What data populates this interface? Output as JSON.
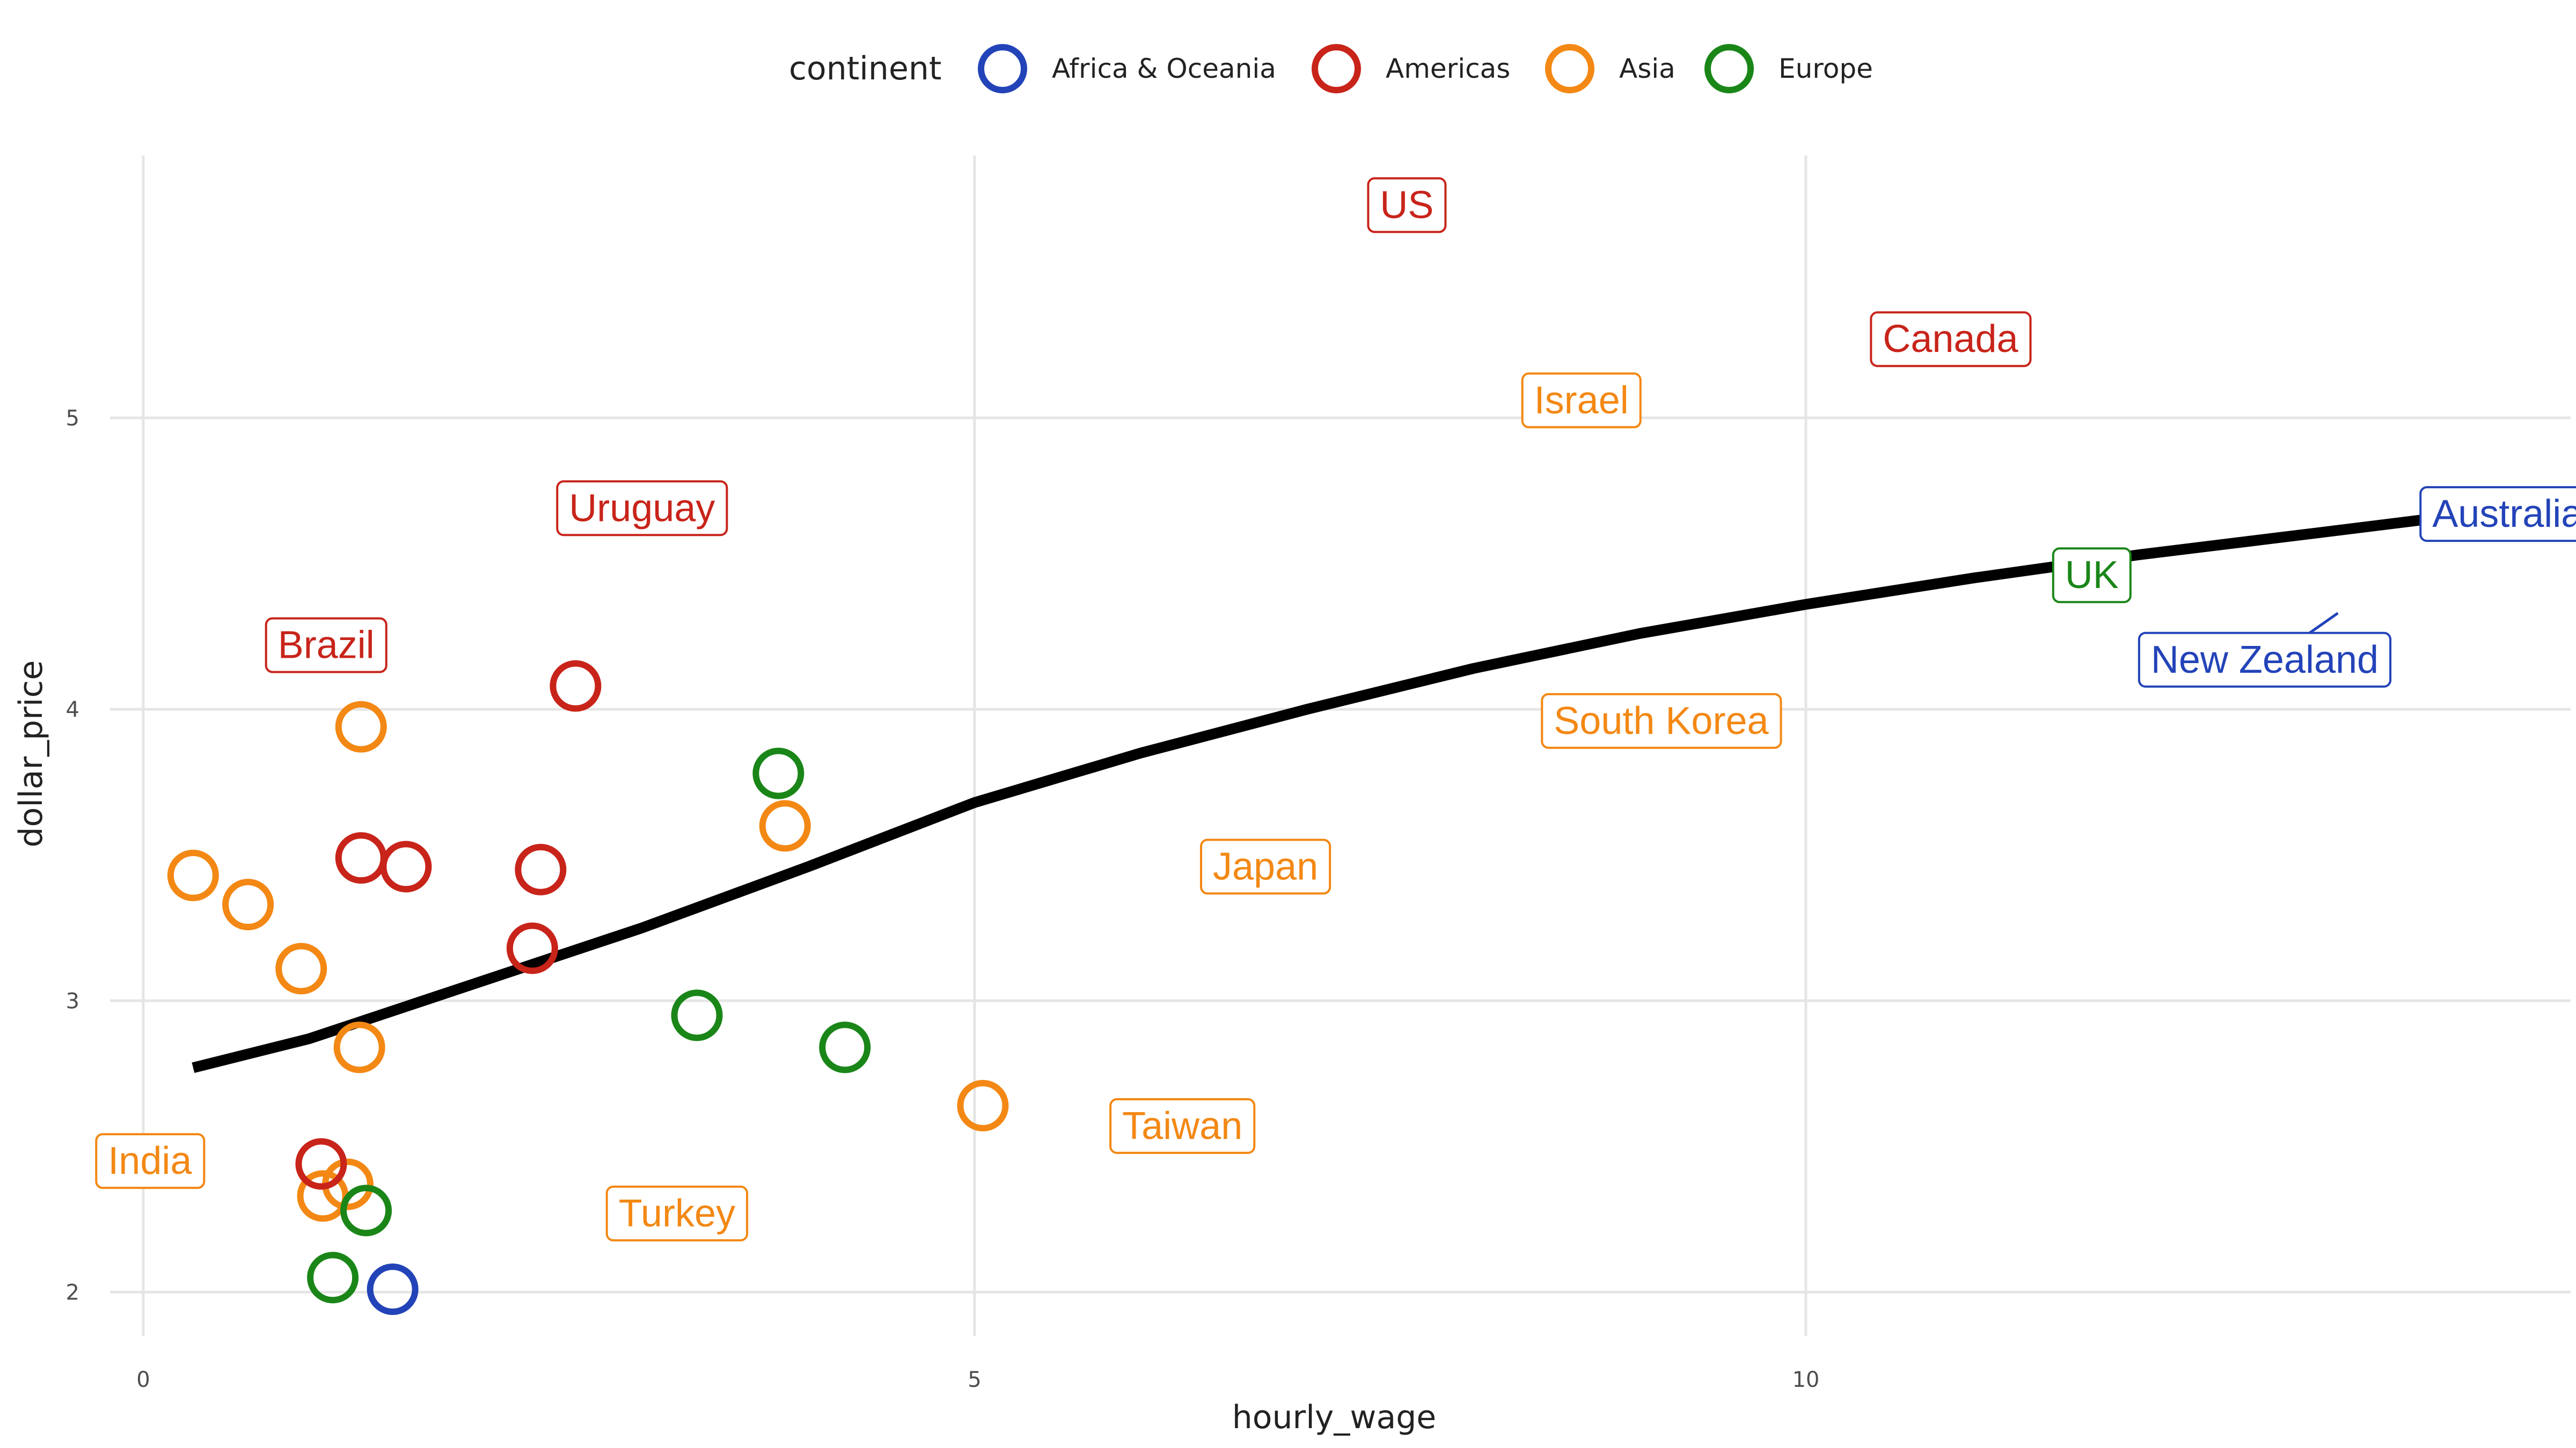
{
  "chart_data": {
    "type": "scatter",
    "title": "",
    "xlabel": "hourly_wage",
    "ylabel": "dollar_price",
    "xlim": [
      -0.2,
      14.6
    ],
    "ylim": [
      1.85,
      5.9
    ],
    "xticks": [
      0,
      5,
      10
    ],
    "yticks": [
      2,
      3,
      4,
      5
    ],
    "grid": true,
    "legend": {
      "title": "continent",
      "position": "top",
      "entries": [
        {
          "name": "Africa & Oceania",
          "color": "#2343b8"
        },
        {
          "name": "Americas",
          "color": "#c8241a"
        },
        {
          "name": "Asia",
          "color": "#f38814"
        },
        {
          "name": "Europe",
          "color": "#1a8618"
        }
      ]
    },
    "points": [
      {
        "x": 0.3,
        "y": 3.43,
        "continent": "Asia"
      },
      {
        "x": 0.63,
        "y": 3.33,
        "continent": "Asia"
      },
      {
        "x": 0.95,
        "y": 3.11,
        "continent": "Asia"
      },
      {
        "x": 1.31,
        "y": 3.94,
        "continent": "Asia"
      },
      {
        "x": 1.31,
        "y": 3.49,
        "continent": "Americas"
      },
      {
        "x": 1.58,
        "y": 3.46,
        "continent": "Americas"
      },
      {
        "x": 1.3,
        "y": 2.84,
        "continent": "Asia"
      },
      {
        "x": 2.6,
        "y": 4.08,
        "continent": "Americas"
      },
      {
        "x": 2.39,
        "y": 3.45,
        "continent": "Americas"
      },
      {
        "x": 2.34,
        "y": 3.18,
        "continent": "Americas"
      },
      {
        "x": 3.82,
        "y": 3.78,
        "continent": "Europe"
      },
      {
        "x": 3.86,
        "y": 3.6,
        "continent": "Asia"
      },
      {
        "x": 3.33,
        "y": 2.95,
        "continent": "Europe"
      },
      {
        "x": 4.22,
        "y": 2.84,
        "continent": "Europe"
      },
      {
        "x": 5.05,
        "y": 2.64,
        "continent": "Asia"
      },
      {
        "x": 1.23,
        "y": 2.37,
        "continent": "Asia"
      },
      {
        "x": 1.08,
        "y": 2.33,
        "continent": "Asia"
      },
      {
        "x": 1.07,
        "y": 2.44,
        "continent": "Americas"
      },
      {
        "x": 1.34,
        "y": 2.28,
        "continent": "Europe"
      },
      {
        "x": 1.14,
        "y": 2.05,
        "continent": "Europe"
      },
      {
        "x": 1.5,
        "y": 2.01,
        "continent": "Africa & Oceania"
      }
    ],
    "labels": [
      {
        "text": "US",
        "x": 7.6,
        "y": 5.73,
        "continent": "Americas"
      },
      {
        "text": "Canada",
        "x": 10.87,
        "y": 5.27,
        "continent": "Americas"
      },
      {
        "text": "Israel",
        "x": 8.65,
        "y": 5.06,
        "continent": "Asia"
      },
      {
        "text": "Uruguay",
        "x": 3.0,
        "y": 4.69,
        "continent": "Americas"
      },
      {
        "text": "Brazil",
        "x": 1.1,
        "y": 4.22,
        "continent": "Americas"
      },
      {
        "text": "Australia",
        "x": 14.22,
        "y": 4.67,
        "continent": "Africa & Oceania"
      },
      {
        "text": "UK",
        "x": 11.72,
        "y": 4.46,
        "continent": "Europe"
      },
      {
        "text": "New Zealand",
        "x": 12.76,
        "y": 4.17,
        "continent": "Africa & Oceania"
      },
      {
        "text": "South Korea",
        "x": 9.13,
        "y": 3.96,
        "continent": "Asia"
      },
      {
        "text": "Japan",
        "x": 6.75,
        "y": 3.46,
        "continent": "Asia"
      },
      {
        "text": "Taiwan",
        "x": 6.25,
        "y": 2.57,
        "continent": "Asia"
      },
      {
        "text": "India",
        "x": 0.04,
        "y": 2.45,
        "continent": "Asia"
      },
      {
        "text": "Turkey",
        "x": 3.21,
        "y": 2.27,
        "continent": "Asia"
      }
    ],
    "leader_lines": [
      {
        "from": {
          "x": 13.0,
          "y": 4.25
        },
        "to": {
          "x": 13.2,
          "y": 4.33
        },
        "continent": "Africa & Oceania"
      }
    ],
    "trend_line": {
      "color": "#000000",
      "points": [
        {
          "x": 0.3,
          "y": 2.77
        },
        {
          "x": 1.0,
          "y": 2.87
        },
        {
          "x": 2.0,
          "y": 3.06
        },
        {
          "x": 3.0,
          "y": 3.25
        },
        {
          "x": 4.0,
          "y": 3.46
        },
        {
          "x": 5.0,
          "y": 3.68
        },
        {
          "x": 6.0,
          "y": 3.85
        },
        {
          "x": 7.0,
          "y": 4.0
        },
        {
          "x": 8.0,
          "y": 4.14
        },
        {
          "x": 9.0,
          "y": 4.26
        },
        {
          "x": 10.0,
          "y": 4.36
        },
        {
          "x": 11.0,
          "y": 4.45
        },
        {
          "x": 12.0,
          "y": 4.53
        },
        {
          "x": 13.0,
          "y": 4.6
        },
        {
          "x": 13.85,
          "y": 4.66
        }
      ]
    }
  }
}
